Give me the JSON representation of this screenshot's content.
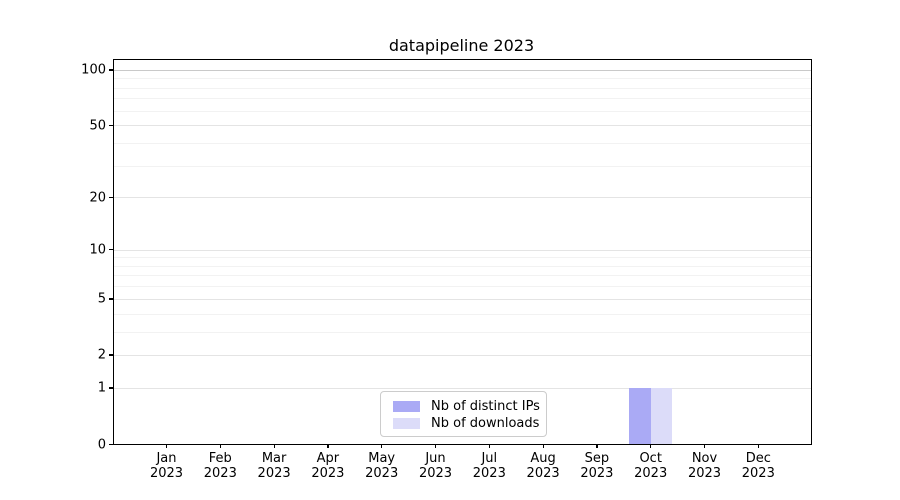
{
  "chart_data": {
    "type": "bar",
    "title": "datapipeline 2023",
    "categories": [
      "Jan 2023",
      "Feb 2023",
      "Mar 2023",
      "Apr 2023",
      "May 2023",
      "Jun 2023",
      "Jul 2023",
      "Aug 2023",
      "Sep 2023",
      "Oct 2023",
      "Nov 2023",
      "Dec 2023"
    ],
    "series": [
      {
        "name": "Nb of distinct IPs",
        "color": "#aaaaf5",
        "values": [
          0,
          0,
          0,
          0,
          0,
          0,
          0,
          0,
          0,
          1,
          0,
          0
        ]
      },
      {
        "name": "Nb of downloads",
        "color": "#dcdcf9",
        "values": [
          0,
          0,
          0,
          0,
          0,
          0,
          0,
          0,
          0,
          1,
          0,
          0
        ]
      }
    ],
    "xlabel": "",
    "ylabel": "",
    "yscale": "log1p",
    "ylim": [
      0,
      113
    ],
    "yticks": [
      0,
      1,
      2,
      5,
      10,
      20,
      50,
      100
    ],
    "yminorticks": [
      3,
      4,
      6,
      7,
      8,
      9,
      30,
      40,
      60,
      70,
      80,
      90
    ],
    "grid": "horizontal",
    "legend_position": "bottom-center"
  },
  "colors": {
    "background": "#ffffff",
    "axis": "#000000",
    "grid_major": "#e4e4e4",
    "grid_minor": "#f2f2f2",
    "grid_top": "#c9c9c9",
    "legend_border": "#cccccc",
    "text": "#000000"
  }
}
